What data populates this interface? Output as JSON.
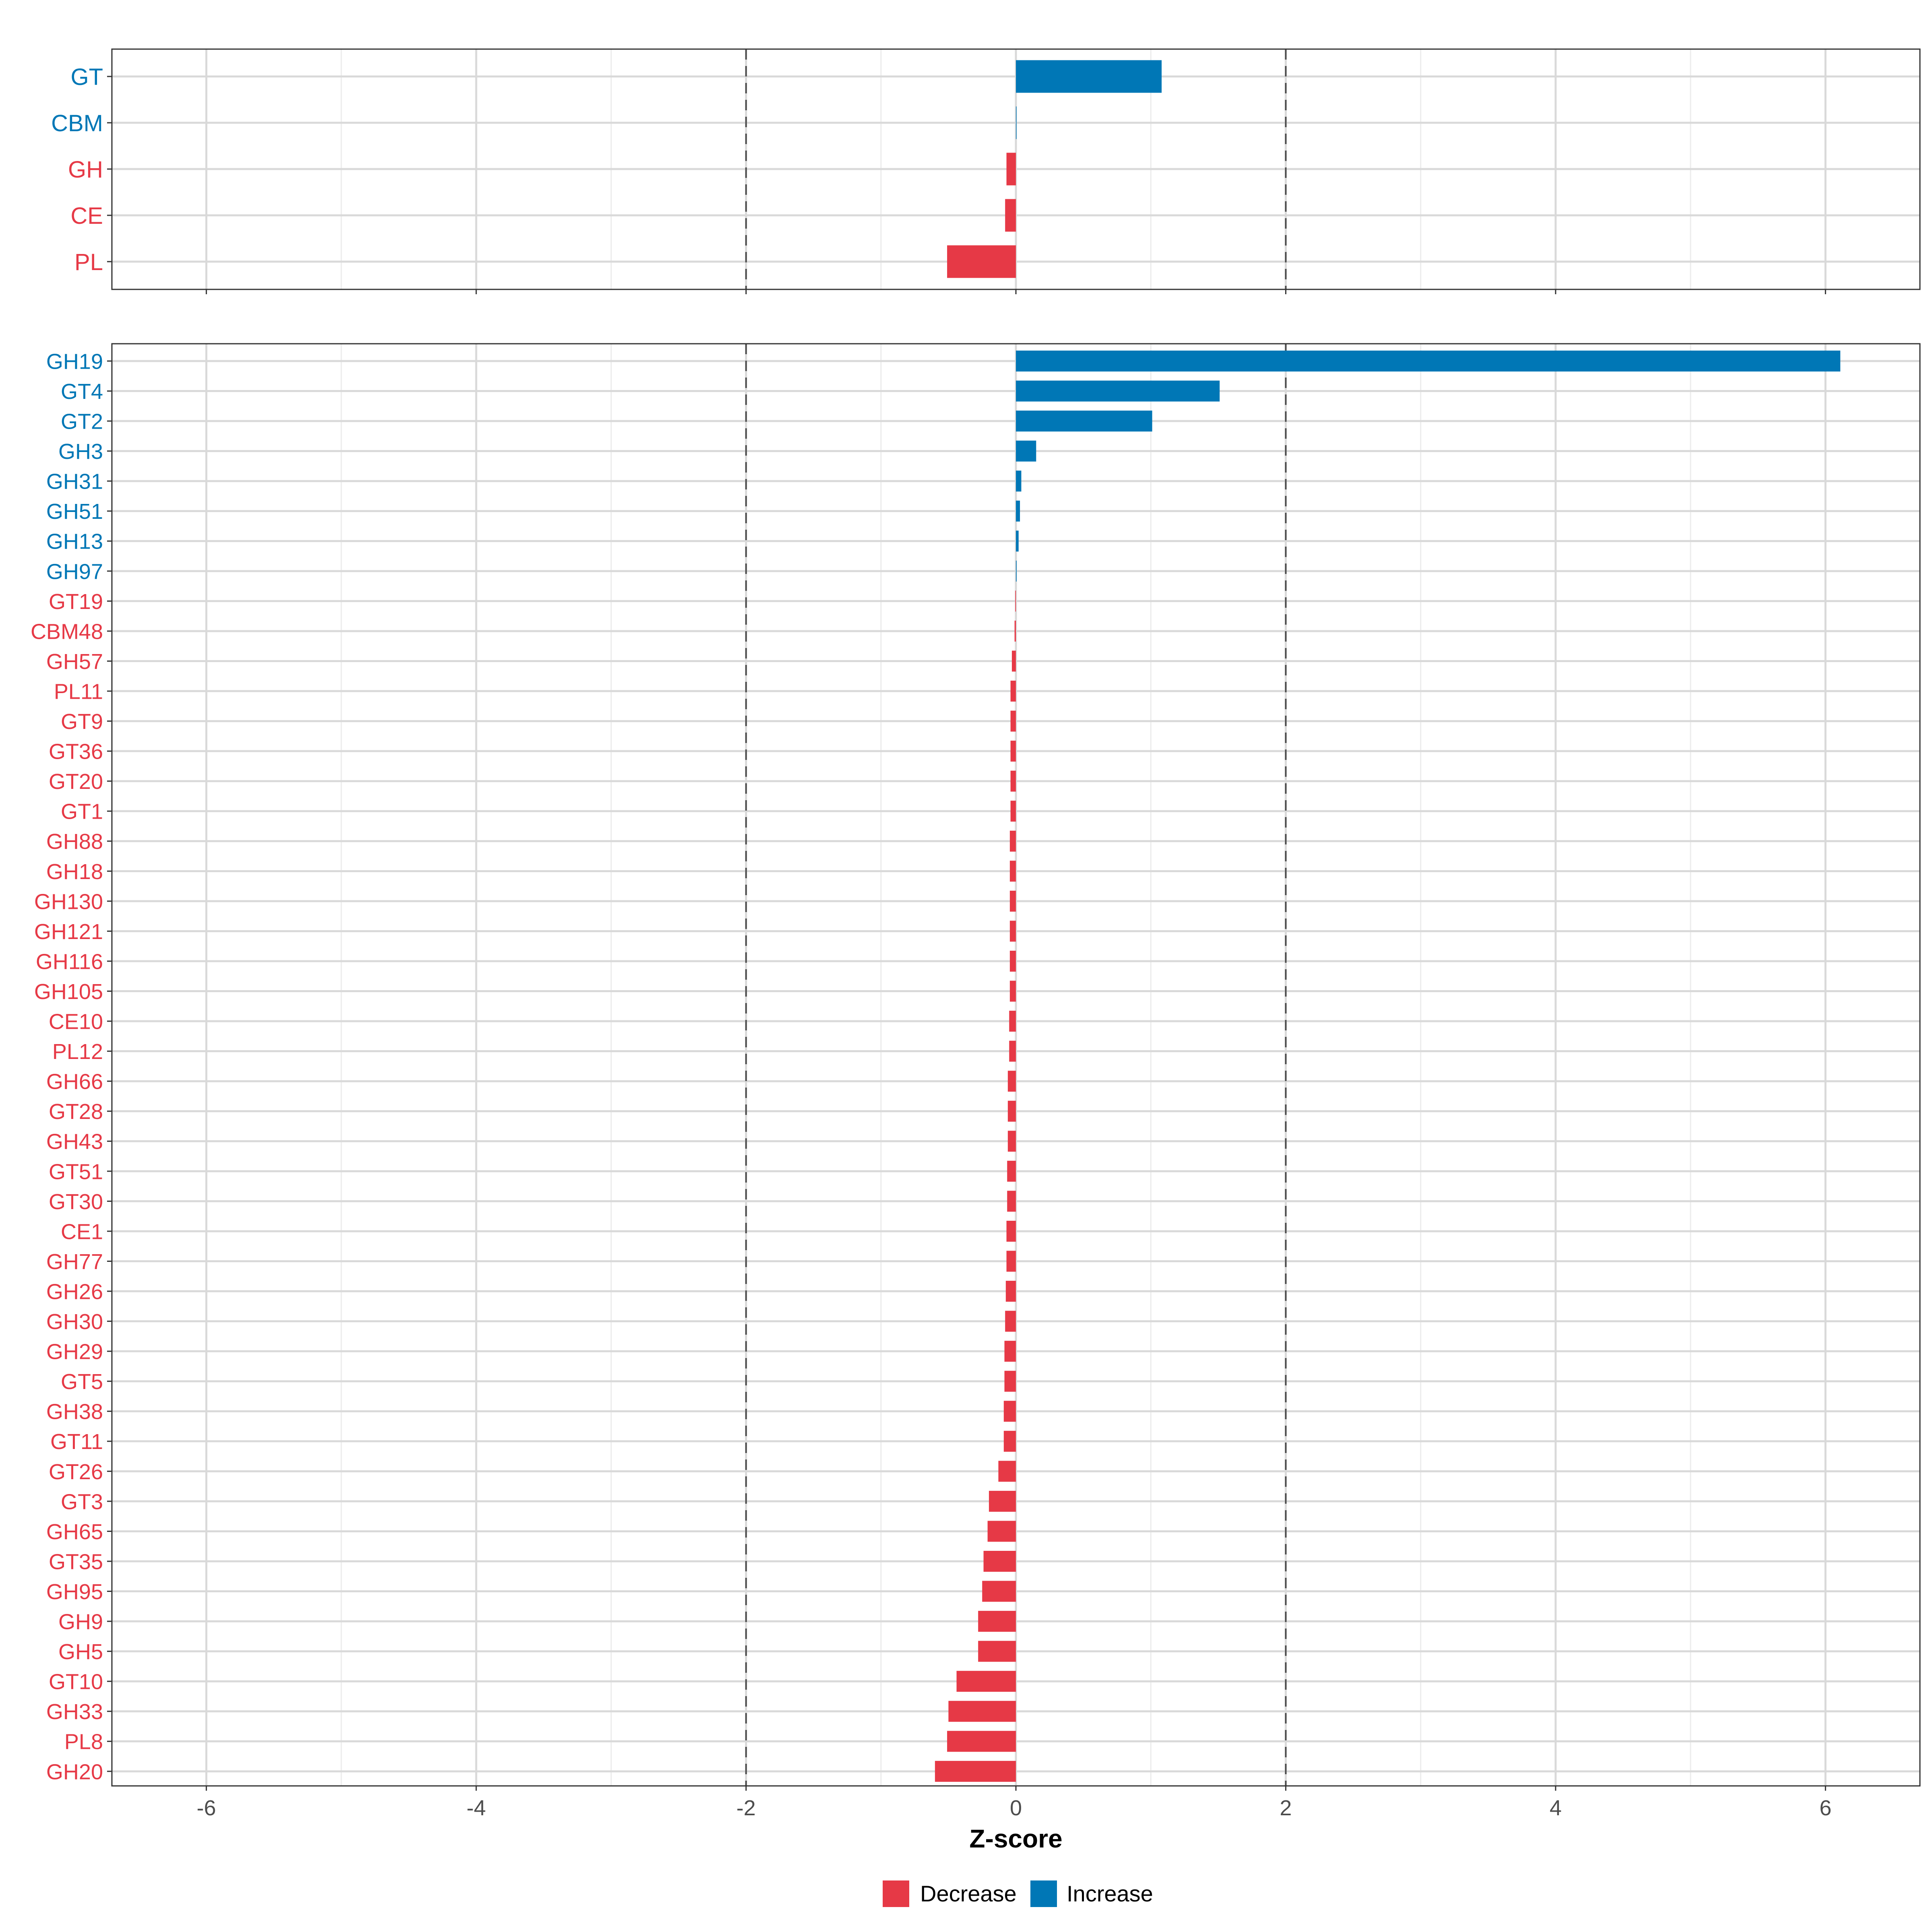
{
  "chart_data": [
    {
      "type": "bar",
      "orientation": "horizontal",
      "categories": [
        "GT",
        "CBM",
        "GH",
        "CE",
        "PL"
      ],
      "values": [
        1.08,
        0.0,
        -0.07,
        -0.08,
        -0.51
      ],
      "xlim": [
        -6.7,
        6.7
      ],
      "xticks": [
        -6,
        -4,
        -2,
        0,
        2,
        4,
        6
      ],
      "reference_lines": [
        -2,
        2
      ],
      "grid": true
    },
    {
      "type": "bar",
      "orientation": "horizontal",
      "categories": [
        "GH19",
        "GT4",
        "GT2",
        "GH3",
        "GH31",
        "GH51",
        "GH13",
        "GH97",
        "GT19",
        "CBM48",
        "GH57",
        "PL11",
        "GT9",
        "GT36",
        "GT20",
        "GT1",
        "GH88",
        "GH18",
        "GH130",
        "GH121",
        "GH116",
        "GH105",
        "CE10",
        "PL12",
        "GH66",
        "GT28",
        "GH43",
        "GT51",
        "GT30",
        "CE1",
        "GH77",
        "GH26",
        "GH30",
        "GH29",
        "GT5",
        "GH38",
        "GT11",
        "GT26",
        "GT3",
        "GH65",
        "GT35",
        "GH95",
        "GH9",
        "GH5",
        "GT10",
        "GH33",
        "PL8",
        "GH20"
      ],
      "values": [
        6.11,
        1.51,
        1.01,
        0.15,
        0.04,
        0.03,
        0.02,
        0.005,
        -0.005,
        -0.01,
        -0.03,
        -0.04,
        -0.04,
        -0.04,
        -0.04,
        -0.04,
        -0.045,
        -0.045,
        -0.045,
        -0.045,
        -0.045,
        -0.045,
        -0.05,
        -0.05,
        -0.06,
        -0.06,
        -0.06,
        -0.065,
        -0.065,
        -0.07,
        -0.07,
        -0.075,
        -0.08,
        -0.085,
        -0.085,
        -0.09,
        -0.09,
        -0.13,
        -0.2,
        -0.21,
        -0.24,
        -0.25,
        -0.28,
        -0.28,
        -0.44,
        -0.5,
        -0.51,
        -0.6
      ],
      "xlim": [
        -6.7,
        6.7
      ],
      "xticks": [
        -6,
        -4,
        -2,
        0,
        2,
        4,
        6
      ],
      "reference_lines": [
        -2,
        2
      ],
      "grid": true,
      "xlabel": "Z-score"
    }
  ],
  "colors": {
    "Decrease": "#e63946",
    "Increase": "#0077b6"
  },
  "legend": {
    "placement": "bottom",
    "entries": [
      "Decrease",
      "Increase"
    ]
  }
}
